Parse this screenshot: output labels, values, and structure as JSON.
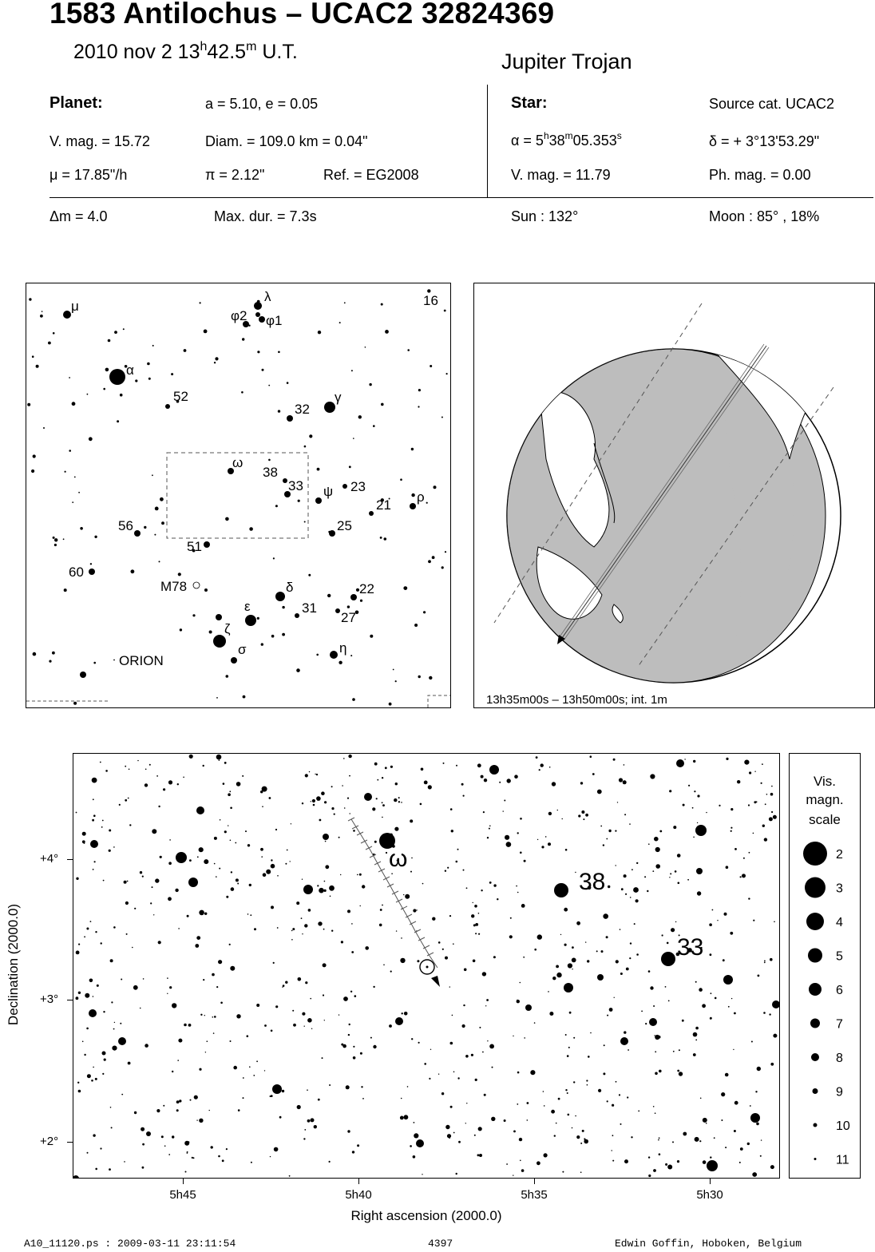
{
  "header": {
    "title": "1583 Antilochus  –  UCAC2 32824369",
    "date_prefix": "2010 nov  2  13",
    "date_h": "h",
    "date_mid": "42.5",
    "date_m": "m",
    "date_suffix": " U.T.",
    "object_class": "Jupiter Trojan"
  },
  "planet": {
    "heading": "Planet:",
    "orbit": "a = 5.10, e = 0.05",
    "vmag": "V. mag. = 15.72",
    "diam": "Diam. = 109.0 km = 0.04\"",
    "motion": "μ =  17.85\"/h",
    "parallax": "π =  2.12\"",
    "ref": "Ref. = EG2008"
  },
  "star": {
    "heading": "Star:",
    "source": "Source cat.  UCAC2",
    "ra_prefix": "α =  5",
    "ra_h": "h",
    "ra_mid": "38",
    "ra_m": "m",
    "ra_sec": "05.353",
    "ra_s": "s",
    "dec": "δ = + 3°13'53.29\"",
    "vmag": "V. mag. = 11.79",
    "phmag": "Ph. mag. =  0.00"
  },
  "event": {
    "dm": "Δm = 4.0",
    "maxdur": "Max. dur. = 7.3s",
    "sun": "Sun : 132°",
    "moon": "Moon :  85° , 18%"
  },
  "finder": {
    "constellation": "ORION",
    "labels": [
      "μ",
      "λ",
      "φ2",
      "φ1",
      "16",
      "α",
      "52",
      "32",
      "γ",
      "ω",
      "38",
      "33",
      "ψ",
      "23",
      "21",
      "ρ",
      "56",
      "25",
      "51",
      "60",
      "M78",
      "δ",
      "22",
      "ε",
      "31",
      "27",
      "ζ",
      "σ",
      "η"
    ]
  },
  "globe": {
    "caption": "13h35m00s – 13h50m00s; int.  1m"
  },
  "detail": {
    "ylabel": "Declination (2000.0)",
    "xlabel": "Right ascension (2000.0)",
    "yticks": [
      "+4°",
      "+3°",
      "+2°"
    ],
    "xticks": [
      "5h45",
      "5h40",
      "5h35",
      "5h30"
    ],
    "star_labels": [
      "ω",
      "38",
      "33"
    ]
  },
  "legend": {
    "title_lines": [
      "Vis.",
      "magn.",
      "scale"
    ],
    "mags": [
      "2",
      "3",
      "4",
      "5",
      "6",
      "7",
      "8",
      "9",
      "10",
      "11"
    ]
  },
  "footer": {
    "file": "A10_11120.ps : 2009-03-11 23:11:54",
    "number": "4397",
    "author": "Edwin Goffin, Hoboken, Belgium"
  }
}
